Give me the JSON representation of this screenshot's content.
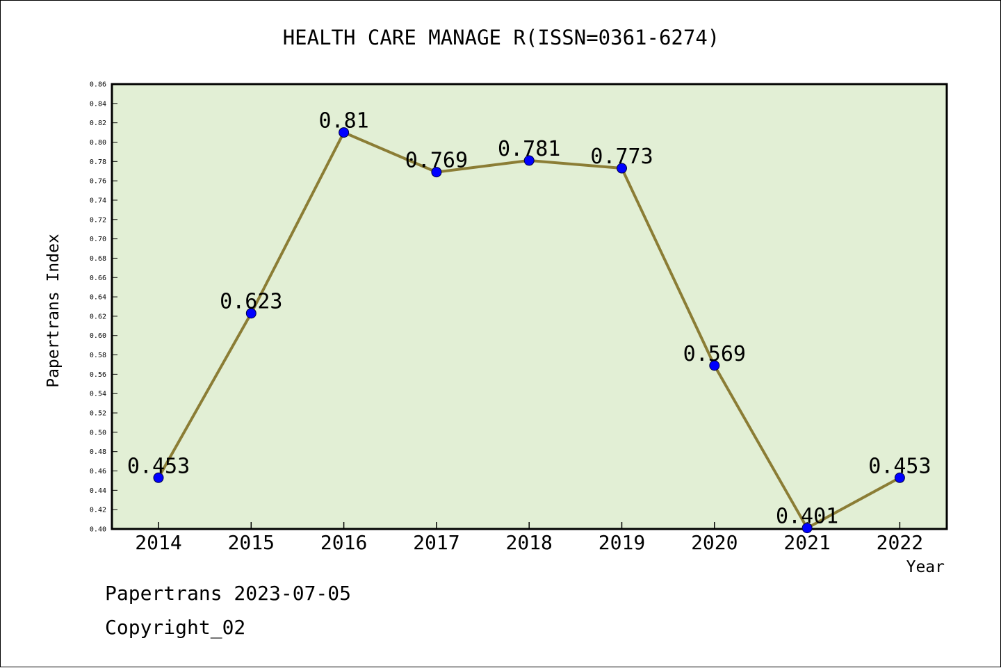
{
  "chart_data": {
    "type": "line",
    "title": "HEALTH CARE MANAGE R(ISSN=0361-6274)",
    "xlabel": "Year",
    "ylabel": "Papertrans Index",
    "categories": [
      "2014",
      "2015",
      "2016",
      "2017",
      "2018",
      "2019",
      "2020",
      "2021",
      "2022"
    ],
    "series": [
      {
        "values": [
          0.453,
          0.623,
          0.81,
          0.769,
          0.781,
          0.773,
          0.569,
          0.401,
          0.453
        ],
        "labels": [
          "0.453",
          "0.623",
          "0.81",
          "0.769",
          "0.781",
          "0.773",
          "0.569",
          "0.401",
          "0.453"
        ]
      }
    ],
    "ylim": [
      0.4,
      0.86
    ],
    "yticks": [
      "0.40",
      "0.42",
      "0.44",
      "0.46",
      "0.48",
      "0.50",
      "0.52",
      "0.54",
      "0.56",
      "0.58",
      "0.60",
      "0.62",
      "0.64",
      "0.66",
      "0.68",
      "0.70",
      "0.72",
      "0.74",
      "0.76",
      "0.78",
      "0.80",
      "0.82",
      "0.84",
      "0.86"
    ],
    "grid": false,
    "legend": "none"
  },
  "footer": {
    "line1": "Papertrans 2023-07-05",
    "line2": "Copyright_02"
  },
  "colors": {
    "plot_background": "#e2efd5",
    "line": "#8b7d35",
    "marker": "#0000ff",
    "axis": "#000000"
  }
}
